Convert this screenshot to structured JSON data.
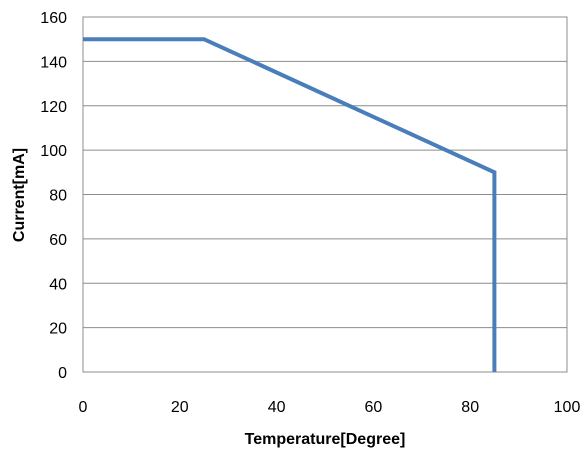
{
  "chart_data": {
    "type": "line",
    "title": "",
    "xlabel": "Temperature[Degree]",
    "ylabel": "Current[mA]",
    "xlim": [
      0,
      100
    ],
    "ylim": [
      0,
      160
    ],
    "xticks": [
      0,
      20,
      40,
      60,
      80,
      100
    ],
    "yticks": [
      0,
      20,
      40,
      60,
      80,
      100,
      120,
      140,
      160
    ],
    "grid": "horizontal",
    "legend": "none",
    "series": [
      {
        "color": "#4a7ebb",
        "points": [
          {
            "x": 0,
            "y": 150
          },
          {
            "x": 25,
            "y": 150
          },
          {
            "x": 85,
            "y": 90
          },
          {
            "x": 85,
            "y": 0
          }
        ]
      }
    ]
  }
}
